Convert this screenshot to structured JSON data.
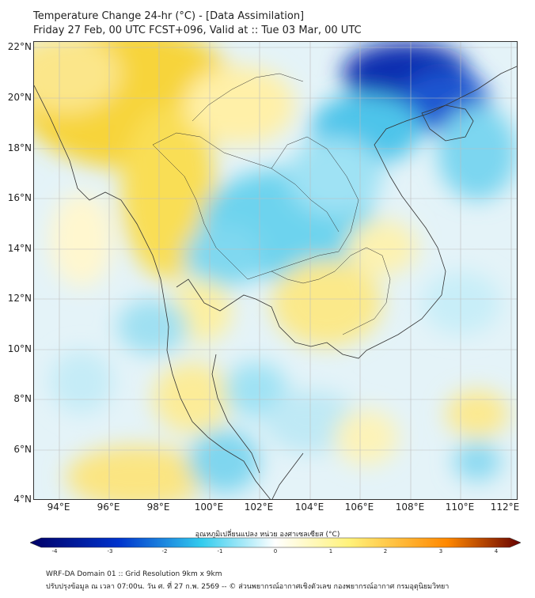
{
  "title_line1": "Temperature Change 24-hr (°C) - [Data Assimilation]",
  "title_line2": "Friday 27 Feb, 00 UTC FCST+096, Valid at :: Tue 03 Mar, 00 UTC",
  "map": {
    "lat_labels": [
      "22°N",
      "20°N",
      "18°N",
      "16°N",
      "14°N",
      "12°N",
      "10°N",
      "8°N",
      "6°N",
      "4°N"
    ],
    "lon_labels": [
      "94°E",
      "96°E",
      "98°E",
      "100°E",
      "102°E",
      "104°E",
      "106°E",
      "108°E",
      "110°E",
      "112°E"
    ],
    "lat_range": [
      4,
      22.2
    ],
    "lon_range": [
      93,
      112.3
    ]
  },
  "colorbar": {
    "title": "อุณหภูมิเปลี่ยนแปลง หน่วย องศาเซลเซียส (°C)",
    "ticks": [
      "-4",
      "-3",
      "-2",
      "-1",
      "0",
      "1",
      "2",
      "3",
      "4"
    ],
    "colors": {
      "cold_extreme": "#000066",
      "cold": "#0033cc",
      "cool": "#33ccee",
      "neutral": "#ffffff",
      "warm": "#fff27a",
      "hot": "#ff8800",
      "hot_extreme": "#660000"
    }
  },
  "footer_line1": "WRF-DA Domain 01 :: Grid Resolution 9km x 9km",
  "footer_line2": "ปรับปรุงข้อมูล ณ เวลา 07:00น. วัน ศ. ที่ 27 ก.พ. 2569 -- © ส่วนพยากรณ์อากาศเชิงตัวเลข กองพยากรณ์อากาศ กรมอุตุนิยมวิทยา"
}
